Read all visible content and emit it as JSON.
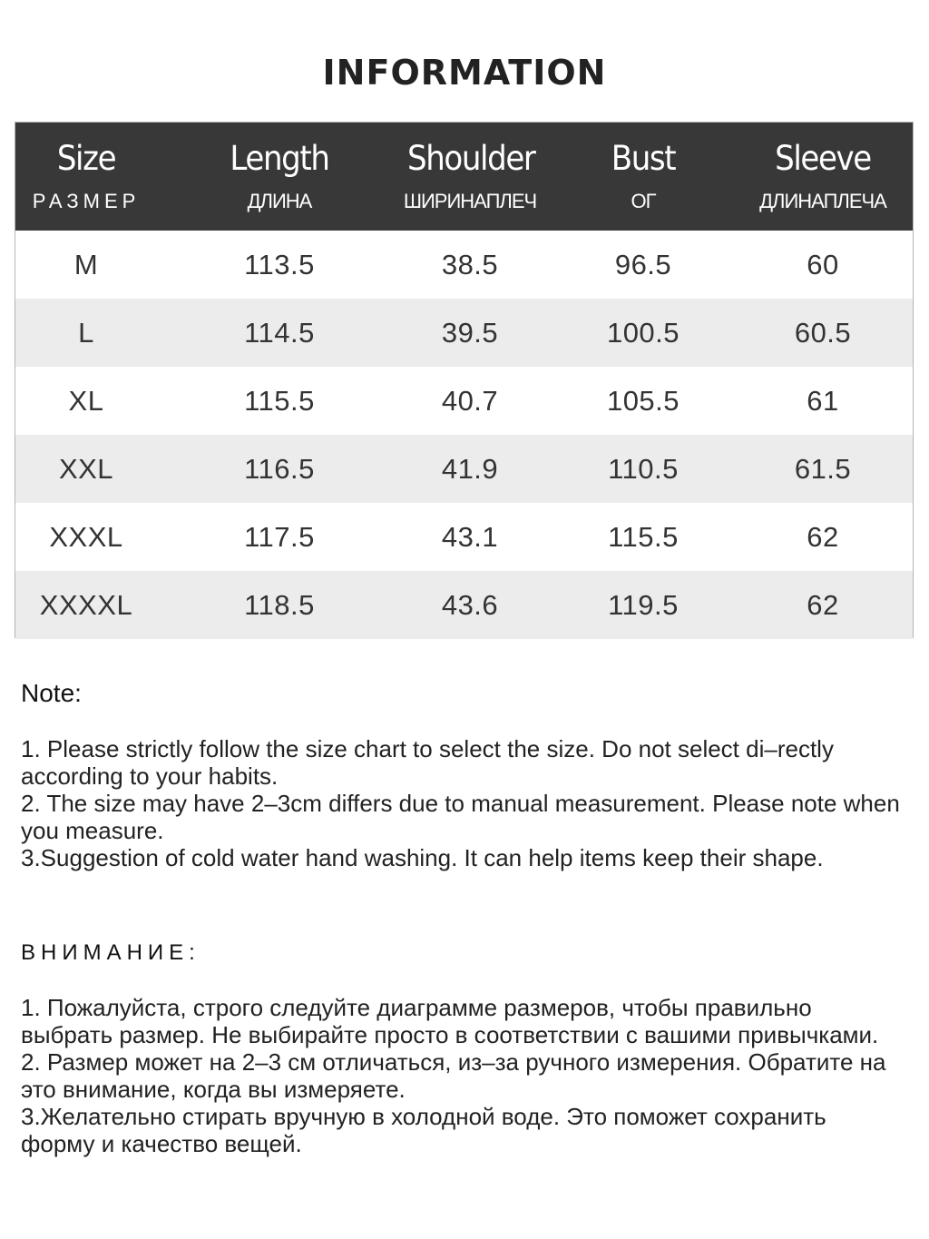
{
  "title": "INFORMATION",
  "table": {
    "columns": [
      {
        "en": "Size",
        "ru": "РАЗМЕР"
      },
      {
        "en": "Length",
        "ru": "ДЛИНА"
      },
      {
        "en": "Shoulder",
        "ru": "ШИРИНАПЛЕЧ"
      },
      {
        "en": "Bust",
        "ru": "ОГ"
      },
      {
        "en": "Sleeve",
        "ru": "ДЛИНАПЛЕЧА"
      }
    ],
    "rows": [
      [
        "M",
        "113.5",
        "38.5",
        "96.5",
        "60"
      ],
      [
        "L",
        "114.5",
        "39.5",
        "100.5",
        "60.5"
      ],
      [
        "XL",
        "115.5",
        "40.7",
        "105.5",
        "61"
      ],
      [
        "XXL",
        "116.5",
        "41.9",
        "110.5",
        "61.5"
      ],
      [
        "XXXL",
        "117.5",
        "43.1",
        "115.5",
        "62"
      ],
      [
        "XXXXL",
        "118.5",
        "43.6",
        "119.5",
        "62"
      ]
    ]
  },
  "note": {
    "heading": "Note:",
    "text": "1. Please strictly follow the size chart  to select the size. Do not select di–rectly according to your habits.\n2. The size may have 2–3cm differs due to manual measurement. Please note when you measure.\n3.Suggestion of cold water hand washing. It can help items keep their shape."
  },
  "note_ru": {
    "heading": "ВНИМАНИЕ:",
    "text": "1. Пожалуйста, строго следуйте диаграмме размеров, чтобы правильно выбрать размер. Не выбирайте просто в соответствии с вашими привычками.\n2. Размер может на 2–3 см отличаться, из–за ручного измерения. Обратите на это внимание, когда вы измеряете.\n3.Желательно стирать вручную в холодной воде. Это поможет сохранить форму и качество вещей."
  }
}
